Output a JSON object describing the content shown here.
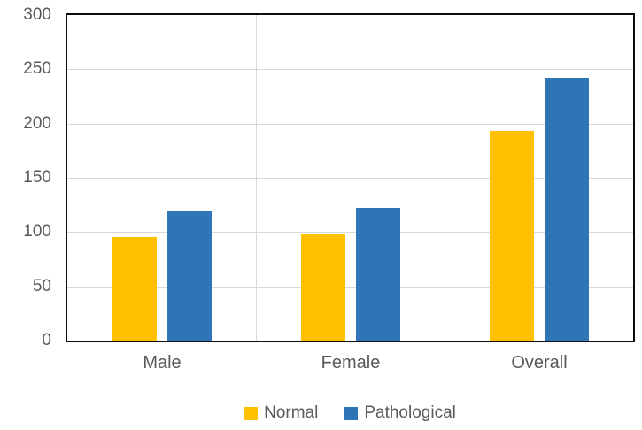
{
  "chart_data": {
    "type": "bar",
    "title": "",
    "categories": [
      "Male",
      "Female",
      "Overall"
    ],
    "series": [
      {
        "name": "Normal",
        "color": "#FFC000",
        "values": [
          95,
          98,
          193
        ]
      },
      {
        "name": "Pathological",
        "color": "#2E75B6",
        "values": [
          120,
          122,
          242
        ]
      }
    ],
    "xlabel": "",
    "ylabel": "",
    "y_axis": {
      "min": 0,
      "max": 300,
      "tick_step": 50,
      "ticks": [
        0,
        50,
        100,
        150,
        200,
        250,
        300
      ]
    },
    "grid": {
      "horizontal": true,
      "vertical_category_separators": true
    },
    "legend_position": "bottom",
    "colors": {
      "gridline": "#D9D9D9",
      "axis_border": "#0D0D0D",
      "label_text": "#595959",
      "background": "#FFFFFF"
    }
  }
}
